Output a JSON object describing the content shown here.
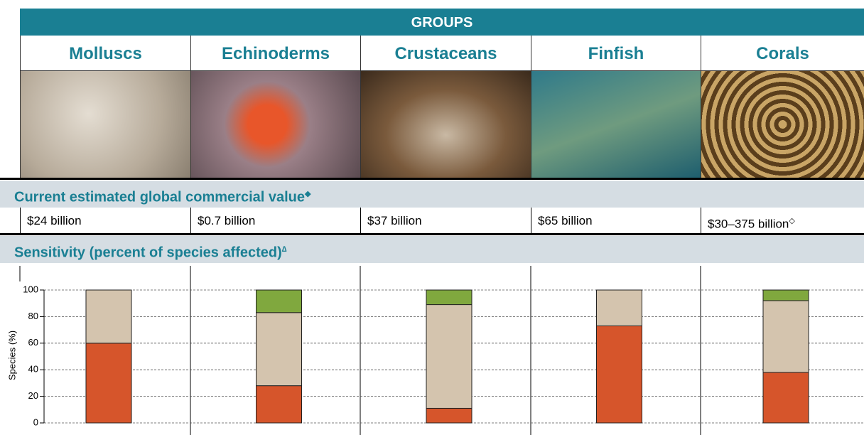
{
  "header": "GROUPS",
  "value_heading": "Current estimated global commercial value",
  "value_heading_note": "◆",
  "values": [
    "$24 billion",
    "$0.7 billion",
    "$37 billion",
    "$65 billion",
    "$30–375 billion"
  ],
  "values_notes": [
    null,
    null,
    null,
    null,
    "◇"
  ],
  "sensitivity_heading": "Sensitivity (percent of species affected)",
  "sensitivity_heading_note": "∆",
  "chart_data": {
    "type": "stacked_bar",
    "categories": [
      "Molluscs",
      "Echinoderms",
      "Crustaceans",
      "Finfish",
      "Corals"
    ],
    "ylabel": "Species (%)",
    "series": [
      {
        "color": "#d6552b",
        "values": [
          60,
          28,
          11,
          73,
          38
        ]
      },
      {
        "color": "#d4c4ae",
        "values": [
          40,
          55,
          78,
          27,
          54
        ]
      },
      {
        "color": "#80a83e",
        "values": [
          0,
          17,
          11,
          0,
          8
        ]
      }
    ],
    "ylim": [
      0,
      100
    ],
    "yticks": [
      0,
      20,
      40,
      60,
      80,
      100
    ],
    "grid": true
  }
}
